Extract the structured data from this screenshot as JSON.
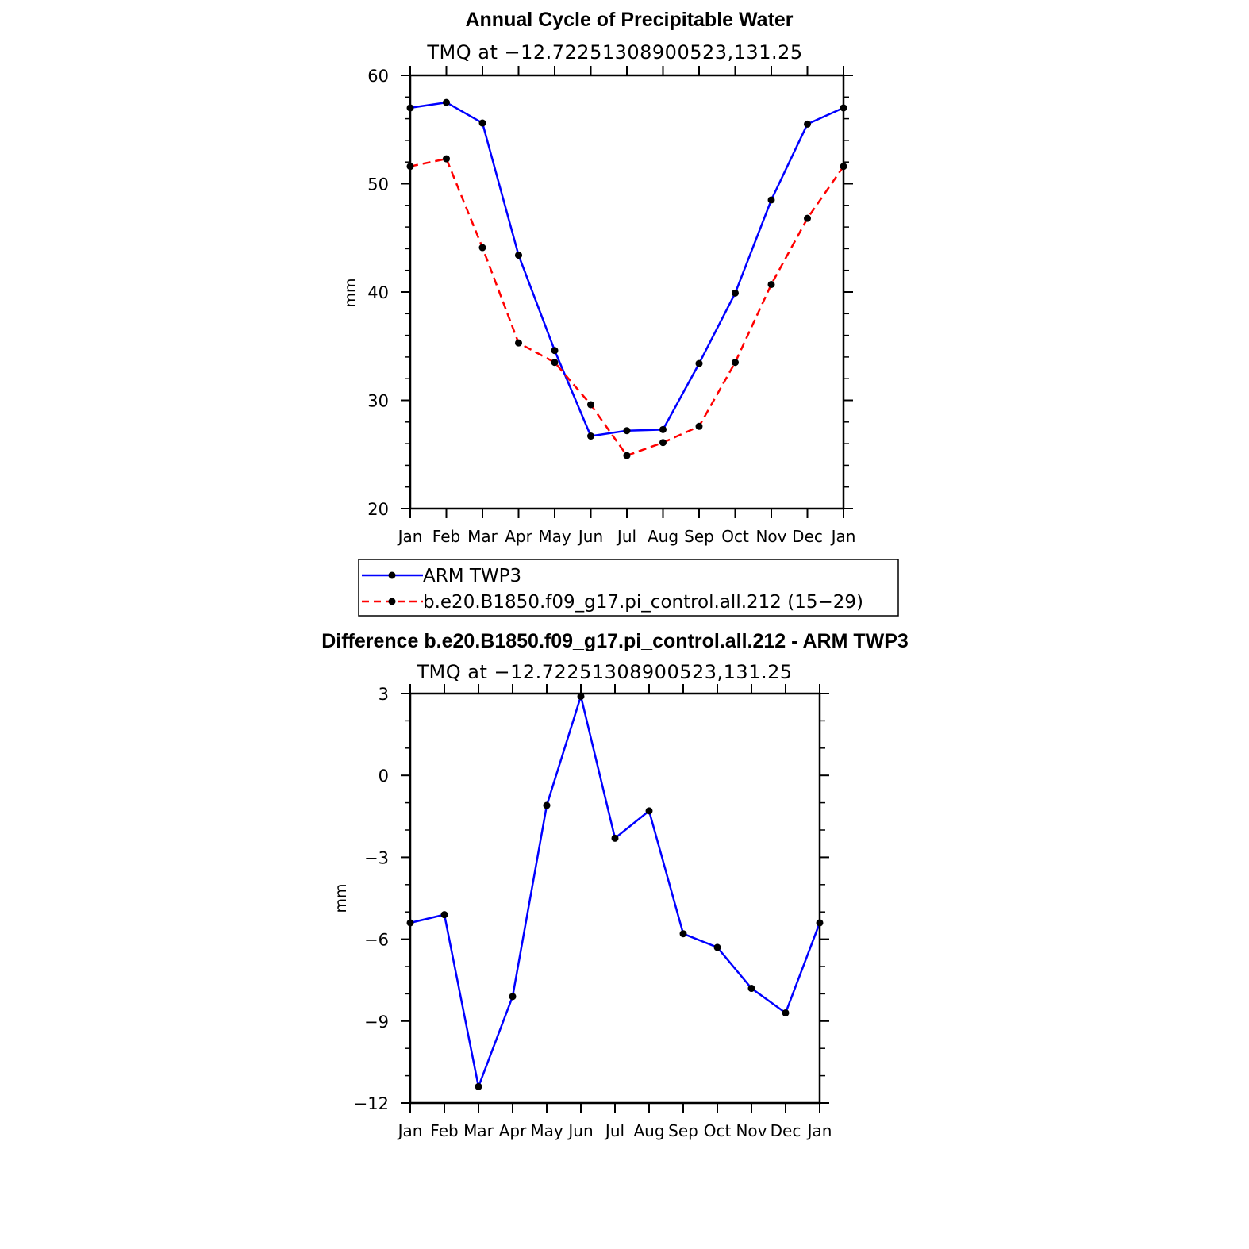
{
  "chart_data": [
    {
      "type": "line",
      "title": "Annual Cycle of Precipitable Water",
      "subtitle": "TMQ at −12.72251308900523,131.25",
      "xlabel": "",
      "ylabel": "mm",
      "categories": [
        "Jan",
        "Feb",
        "Mar",
        "Apr",
        "May",
        "Jun",
        "Jul",
        "Aug",
        "Sep",
        "Oct",
        "Nov",
        "Dec",
        "Jan"
      ],
      "ylim": [
        20,
        60
      ],
      "yticks": [
        20,
        30,
        40,
        50,
        60
      ],
      "ytick_labels": [
        "20",
        "30",
        "40",
        "50",
        "60"
      ],
      "grid": false,
      "legend_position": "below",
      "series": [
        {
          "name": "ARM TWP3",
          "color": "#0000ff",
          "dashed": false,
          "marker": "filled-circle",
          "values": [
            57.0,
            57.5,
            55.6,
            43.4,
            34.6,
            26.7,
            27.2,
            27.3,
            33.4,
            39.9,
            48.5,
            55.5,
            57.0
          ]
        },
        {
          "name": "b.e20.B1850.f09_g17.pi_control.all.212 (15−29)",
          "color": "#ff0000",
          "dashed": true,
          "marker": "filled-circle",
          "values": [
            51.6,
            52.3,
            44.1,
            35.3,
            33.5,
            29.6,
            24.9,
            26.1,
            27.6,
            33.5,
            40.7,
            46.8,
            51.6
          ]
        }
      ]
    },
    {
      "type": "line",
      "title": "Difference b.e20.B1850.f09_g17.pi_control.all.212 - ARM TWP3",
      "subtitle": "TMQ at −12.72251308900523,131.25",
      "xlabel": "",
      "ylabel": "mm",
      "categories": [
        "Jan",
        "Feb",
        "Mar",
        "Apr",
        "May",
        "Jun",
        "Jul",
        "Aug",
        "Sep",
        "Oct",
        "Nov",
        "Dec",
        "Jan"
      ],
      "ylim": [
        -12,
        3
      ],
      "yticks": [
        -12,
        -9,
        -6,
        -3,
        0,
        3
      ],
      "ytick_labels": [
        "−12",
        "−9",
        "−6",
        "−3",
        "0",
        "3"
      ],
      "grid": false,
      "series": [
        {
          "name": "Difference",
          "color": "#0000ff",
          "dashed": false,
          "marker": "filled-circle",
          "values": [
            -5.4,
            -5.1,
            -11.4,
            -8.1,
            -1.1,
            2.9,
            -2.3,
            -1.3,
            -5.8,
            -6.3,
            -7.8,
            -8.7,
            -5.4
          ]
        }
      ]
    }
  ]
}
